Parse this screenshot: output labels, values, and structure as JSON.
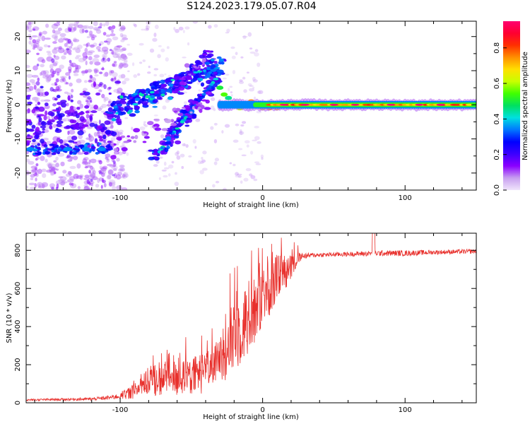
{
  "title": "S124.2023.179.05.07.R04",
  "colors": {
    "snr_line": "#e8302c",
    "axis": "#000000",
    "background": "#ffffff"
  },
  "chart_data": [
    {
      "type": "heatmap",
      "xlabel": "Height of straight line (km)",
      "ylabel": "Frequency (Hz)",
      "xlim": [
        -166,
        150
      ],
      "ylim": [
        -25,
        24.5
      ],
      "x_ticks": [
        -100,
        0,
        100
      ],
      "y_ticks": [
        -20,
        -10,
        0,
        10,
        20
      ],
      "grid": false,
      "description_of_structure": {
        "carrier_line": {
          "x_range": [
            -30,
            150
          ],
          "y": 0,
          "peak_amplitude": 0.95
        },
        "upper_branch": {
          "from": [
            -105,
            -2
          ],
          "to": [
            -28,
            12
          ]
        },
        "lower_branch": {
          "from": [
            -75,
            -15
          ],
          "to": [
            -32,
            8
          ]
        },
        "mirror_branch": {
          "from": [
            -105,
            -13
          ],
          "to": [
            -35,
            2
          ]
        },
        "noise_region_x": [
          -166,
          -100
        ]
      }
    },
    {
      "type": "line",
      "xlabel": "Height of straight line (km)",
      "ylabel": "SNR (10 * v/v)",
      "xlim": [
        -166,
        150
      ],
      "ylim": [
        0,
        890
      ],
      "x_ticks": [
        -100,
        0,
        100
      ],
      "y_ticks": [
        0,
        200,
        400,
        600,
        800
      ],
      "grid": false,
      "series": [
        {
          "name": "",
          "envelope_x": [
            -166,
            -120,
            -110,
            -100,
            -90,
            -80,
            -70,
            -60,
            -50,
            -40,
            -30,
            -20,
            -10,
            0,
            10,
            20,
            25,
            28,
            35,
            60,
            80,
            100,
            120,
            150
          ],
          "envelope_y": [
            15,
            20,
            25,
            35,
            60,
            110,
            140,
            120,
            140,
            160,
            220,
            350,
            450,
            560,
            650,
            720,
            760,
            770,
            775,
            780,
            785,
            785,
            790,
            795
          ],
          "noise_amplitude": [
            5,
            8,
            10,
            15,
            40,
            80,
            100,
            90,
            100,
            110,
            120,
            200,
            200,
            170,
            120,
            80,
            30,
            15,
            12,
            12,
            15,
            15,
            12,
            12
          ]
        }
      ]
    },
    {
      "type": "colorbar",
      "label": "Normalized spectral amplitude",
      "range": [
        0,
        0.95
      ],
      "ticks": [
        "0.0",
        "0.2",
        "0.4",
        "0.6",
        "0.8"
      ],
      "colormap": [
        "#f0e4fb",
        "#c8a0f0",
        "#8a00ff",
        "#3c00ff",
        "#0000ff",
        "#0077ff",
        "#00e0e0",
        "#00e060",
        "#40ff00",
        "#c8ff00",
        "#ffe000",
        "#ff9000",
        "#ff3000",
        "#ff0030",
        "#ff0070"
      ]
    }
  ]
}
